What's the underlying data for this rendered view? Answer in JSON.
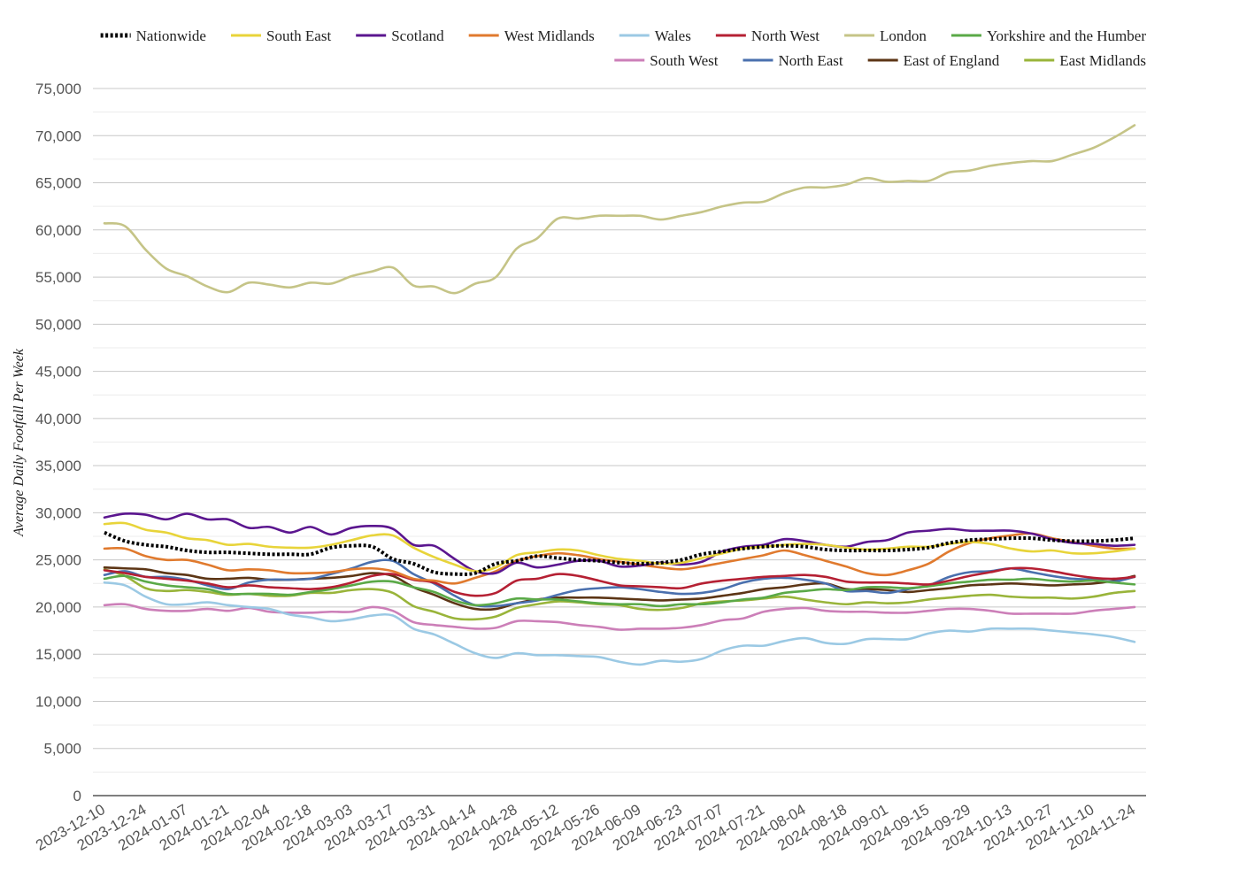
{
  "chart_data": {
    "type": "line",
    "title": "",
    "xlabel": "",
    "ylabel": "Average Daily Footfall Per Week",
    "ylim": [
      0,
      75000
    ],
    "y_ticks": [
      0,
      5000,
      10000,
      15000,
      20000,
      25000,
      30000,
      35000,
      40000,
      45000,
      50000,
      55000,
      60000,
      65000,
      70000,
      75000
    ],
    "y_tick_labels": [
      "0",
      "5,000",
      "10,000",
      "15,000",
      "20,000",
      "25,000",
      "30,000",
      "35,000",
      "40,000",
      "45,000",
      "50,000",
      "55,000",
      "60,000",
      "65,000",
      "70,000",
      "75,000"
    ],
    "x_tick_labels": [
      "2023-12-10",
      "2023-12-24",
      "2024-01-07",
      "2024-01-21",
      "2024-02-04",
      "2024-02-18",
      "2024-03-03",
      "2024-03-17",
      "2024-03-31",
      "2024-04-14",
      "2024-04-28",
      "2024-05-12",
      "2024-05-26",
      "2024-06-09",
      "2024-06-23",
      "2024-07-07",
      "2024-07-21",
      "2024-08-04",
      "2024-08-18",
      "2024-09-01",
      "2024-09-15",
      "2024-09-29",
      "2024-10-13",
      "2024-10-27",
      "2024-11-10",
      "2024-11-24"
    ],
    "grid": true,
    "legend_position": "top-right",
    "x": [
      "2023-12-10",
      "2023-12-17",
      "2023-12-24",
      "2023-12-31",
      "2024-01-07",
      "2024-01-14",
      "2024-01-21",
      "2024-01-28",
      "2024-02-04",
      "2024-02-11",
      "2024-02-18",
      "2024-02-25",
      "2024-03-03",
      "2024-03-10",
      "2024-03-17",
      "2024-03-24",
      "2024-03-31",
      "2024-04-07",
      "2024-04-14",
      "2024-04-21",
      "2024-04-28",
      "2024-05-05",
      "2024-05-12",
      "2024-05-19",
      "2024-05-26",
      "2024-06-02",
      "2024-06-09",
      "2024-06-16",
      "2024-06-23",
      "2024-06-30",
      "2024-07-07",
      "2024-07-14",
      "2024-07-21",
      "2024-07-28",
      "2024-08-04",
      "2024-08-11",
      "2024-08-18",
      "2024-08-25",
      "2024-09-01",
      "2024-09-08",
      "2024-09-15",
      "2024-09-22",
      "2024-09-29",
      "2024-10-06",
      "2024-10-13",
      "2024-10-20",
      "2024-10-27",
      "2024-11-03",
      "2024-11-10",
      "2024-11-17",
      "2024-11-24"
    ],
    "series": [
      {
        "name": "Nationwide",
        "color": "#000000",
        "dashed": true,
        "values": [
          27900,
          27000,
          26600,
          26400,
          26000,
          25800,
          25800,
          25700,
          25600,
          25600,
          25600,
          26300,
          26500,
          26400,
          25100,
          24600,
          23700,
          23500,
          23600,
          24600,
          24900,
          25400,
          25200,
          25000,
          24900,
          24700,
          24600,
          24700,
          25000,
          25600,
          25900,
          26200,
          26400,
          26500,
          26400,
          26100,
          26000,
          26000,
          26000,
          26100,
          26300,
          26800,
          27100,
          27200,
          27300,
          27300,
          27100,
          27000,
          27000,
          27100,
          27300
        ]
      },
      {
        "name": "South East",
        "color": "#e8d43a",
        "values": [
          28800,
          28900,
          28200,
          27900,
          27300,
          27100,
          26600,
          26700,
          26400,
          26300,
          26300,
          26600,
          27100,
          27600,
          27600,
          26300,
          25300,
          24500,
          23800,
          24200,
          25500,
          25800,
          26100,
          26000,
          25500,
          25100,
          24900,
          24600,
          24700,
          25200,
          25700,
          26200,
          26400,
          26600,
          26700,
          26600,
          26300,
          26100,
          26200,
          26400,
          26400,
          26700,
          26900,
          26700,
          26200,
          25900,
          26000,
          25700,
          25700,
          25900,
          26200
        ]
      },
      {
        "name": "Scotland",
        "color": "#5b168f",
        "values": [
          29500,
          29900,
          29800,
          29300,
          29900,
          29300,
          29300,
          28400,
          28500,
          27900,
          28500,
          27700,
          28400,
          28600,
          28300,
          26600,
          26500,
          25100,
          23800,
          23600,
          24700,
          24200,
          24500,
          24900,
          24900,
          24300,
          24400,
          24700,
          24500,
          24800,
          25900,
          26400,
          26600,
          27200,
          27000,
          26600,
          26400,
          26900,
          27100,
          27900,
          28100,
          28300,
          28100,
          28100,
          28100,
          27800,
          27200,
          26800,
          26700,
          26500,
          26600
        ]
      },
      {
        "name": "West Midlands",
        "color": "#e07a2e",
        "values": [
          26200,
          26200,
          25400,
          25000,
          25000,
          24500,
          23900,
          24000,
          23900,
          23600,
          23600,
          23700,
          24000,
          24100,
          23800,
          23000,
          22800,
          22500,
          23100,
          23800,
          24900,
          25400,
          25700,
          25500,
          25100,
          24800,
          24500,
          24200,
          24000,
          24300,
          24700,
          25100,
          25500,
          26000,
          25500,
          24900,
          24300,
          23600,
          23400,
          23900,
          24600,
          25900,
          26800,
          27300,
          27600,
          27800,
          27300,
          26900,
          26500,
          26200,
          26200
        ]
      },
      {
        "name": "Wales",
        "color": "#9bc9e4",
        "values": [
          22600,
          22300,
          21100,
          20300,
          20300,
          20500,
          20200,
          20000,
          19800,
          19200,
          18900,
          18500,
          18700,
          19100,
          19100,
          17700,
          17100,
          16100,
          15100,
          14600,
          15100,
          14900,
          14900,
          14800,
          14700,
          14200,
          13900,
          14300,
          14200,
          14500,
          15400,
          15900,
          15900,
          16400,
          16700,
          16200,
          16100,
          16600,
          16600,
          16600,
          17200,
          17500,
          17400,
          17700,
          17700,
          17700,
          17500,
          17300,
          17100,
          16800,
          16300
        ]
      },
      {
        "name": "North West",
        "color": "#b52033",
        "values": [
          23900,
          23600,
          23200,
          23000,
          22800,
          22500,
          22100,
          22300,
          22100,
          22000,
          21900,
          22100,
          22600,
          23300,
          23500,
          22900,
          22600,
          21600,
          21200,
          21500,
          22800,
          23000,
          23500,
          23300,
          22800,
          22300,
          22200,
          22100,
          22000,
          22500,
          22800,
          23000,
          23200,
          23300,
          23400,
          23200,
          22700,
          22600,
          22600,
          22500,
          22400,
          22800,
          23300,
          23700,
          24100,
          24100,
          23800,
          23400,
          23100,
          23000,
          23200
        ]
      },
      {
        "name": "London",
        "color": "#c5c487",
        "values": [
          60700,
          60400,
          57900,
          55900,
          55100,
          54000,
          53400,
          54400,
          54200,
          53900,
          54400,
          54300,
          55100,
          55600,
          56000,
          54100,
          54000,
          53300,
          54300,
          55000,
          58000,
          59100,
          61200,
          61200,
          61500,
          61500,
          61500,
          61100,
          61500,
          61900,
          62500,
          62900,
          63000,
          63900,
          64500,
          64500,
          64800,
          65500,
          65100,
          65200,
          65200,
          66100,
          66300,
          66800,
          67100,
          67300,
          67300,
          68000,
          68700,
          69800,
          71100
        ]
      },
      {
        "name": "Yorkshire and the Humber",
        "color": "#5aa947",
        "values": [
          23000,
          23300,
          22700,
          22300,
          22100,
          21900,
          21400,
          21400,
          21400,
          21300,
          21600,
          21900,
          22300,
          22700,
          22700,
          22100,
          21600,
          20700,
          20200,
          20400,
          20900,
          20800,
          20800,
          20600,
          20400,
          20300,
          20300,
          20100,
          20300,
          20300,
          20500,
          20800,
          21000,
          21500,
          21700,
          21900,
          21800,
          22100,
          22100,
          22000,
          22200,
          22500,
          22700,
          22900,
          22900,
          23000,
          22800,
          22700,
          22800,
          22600,
          22400
        ]
      },
      {
        "name": "South West",
        "color": "#cc7fb8",
        "values": [
          20200,
          20300,
          19800,
          19600,
          19600,
          19800,
          19600,
          19900,
          19500,
          19400,
          19400,
          19500,
          19500,
          20000,
          19600,
          18400,
          18100,
          17900,
          17700,
          17800,
          18500,
          18500,
          18400,
          18100,
          17900,
          17600,
          17700,
          17700,
          17800,
          18100,
          18600,
          18800,
          19500,
          19800,
          19900,
          19600,
          19500,
          19500,
          19400,
          19400,
          19600,
          19800,
          19800,
          19600,
          19300,
          19300,
          19300,
          19300,
          19600,
          19800,
          20000
        ]
      },
      {
        "name": "North East",
        "color": "#4a70ae",
        "values": [
          23400,
          23800,
          23200,
          23200,
          22900,
          22300,
          21900,
          22600,
          22900,
          22900,
          23000,
          23500,
          24100,
          24800,
          24900,
          23500,
          22500,
          21200,
          20200,
          20100,
          20400,
          20700,
          21300,
          21800,
          22000,
          22100,
          21900,
          21600,
          21400,
          21500,
          21900,
          22600,
          23000,
          23100,
          22900,
          22500,
          21700,
          21700,
          21500,
          21900,
          22300,
          23200,
          23700,
          23800,
          24100,
          23700,
          23300,
          23000,
          22900,
          22700,
          23200
        ]
      },
      {
        "name": "East of England",
        "color": "#5c3515",
        "values": [
          24200,
          24100,
          24000,
          23600,
          23400,
          23000,
          23000,
          23100,
          22900,
          22900,
          23000,
          23100,
          23300,
          23600,
          23300,
          22100,
          21300,
          20400,
          19800,
          19800,
          20400,
          20800,
          21000,
          21000,
          21000,
          20900,
          20800,
          20700,
          20800,
          20900,
          21200,
          21500,
          21900,
          22100,
          22400,
          22500,
          21900,
          21900,
          21800,
          21600,
          21800,
          22000,
          22300,
          22400,
          22500,
          22400,
          22300,
          22400,
          22500,
          22800,
          23300
        ]
      },
      {
        "name": "East Midlands",
        "color": "#99b43a",
        "values": [
          24000,
          23300,
          22000,
          21700,
          21800,
          21600,
          21300,
          21400,
          21200,
          21200,
          21500,
          21500,
          21800,
          21900,
          21500,
          20100,
          19500,
          18800,
          18700,
          19000,
          19900,
          20300,
          20600,
          20500,
          20300,
          20200,
          19800,
          19700,
          19900,
          20400,
          20600,
          20700,
          20900,
          21100,
          20800,
          20500,
          20300,
          20500,
          20400,
          20500,
          20800,
          21000,
          21200,
          21300,
          21100,
          21000,
          21000,
          20900,
          21100,
          21500,
          21700
        ]
      }
    ]
  }
}
